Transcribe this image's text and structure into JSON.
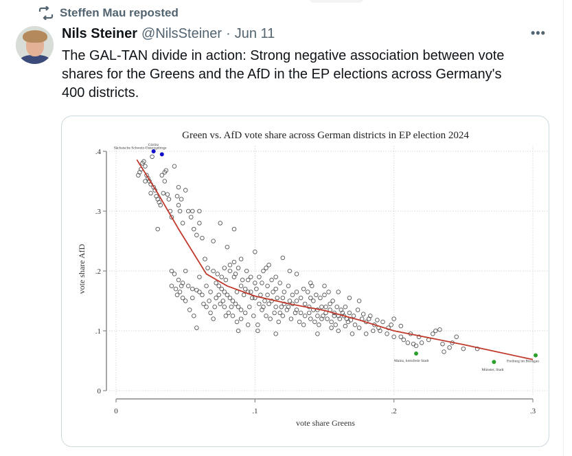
{
  "repost": {
    "label": "Steffen Mau reposted",
    "icon": "repost-icon"
  },
  "author": {
    "display_name": "Nils Steiner",
    "handle": "@NilsSteiner",
    "separator": "·",
    "date": "Jun 11",
    "avatar": "avatar-photo"
  },
  "more_icon": "•••",
  "tweet": {
    "lines": [
      "The GAL-TAN divide in action: Strong negative association between vote",
      "shares for the Greens and the AfD in the EP elections across Germany's",
      "400 districts."
    ]
  },
  "chart_data": {
    "type": "scatter",
    "title": "Green vs. AfD vote share across German districts in EP election 2024",
    "xlabel": "vote share Greens",
    "ylabel": "vote share AfD",
    "xlim": [
      0,
      0.3
    ],
    "ylim": [
      0,
      0.4
    ],
    "xticks": [
      {
        "v": 0,
        "label": "0"
      },
      {
        "v": 0.1,
        "label": ".1"
      },
      {
        "v": 0.2,
        "label": ".2"
      },
      {
        "v": 0.3,
        "label": ".3"
      }
    ],
    "yticks": [
      {
        "v": 0,
        "label": "0"
      },
      {
        "v": 0.1,
        "label": ".1"
      },
      {
        "v": 0.2,
        "label": ".2"
      },
      {
        "v": 0.3,
        "label": ".3"
      },
      {
        "v": 0.4,
        "label": ".4"
      }
    ],
    "grid": true,
    "colors": {
      "points": "#555555",
      "fit_line": "#c0392b",
      "highlight_afd": "#1010c8",
      "highlight_green": "#2ca02c"
    },
    "fit_line": {
      "name": "smoothed fit",
      "x": [
        0.015,
        0.03,
        0.045,
        0.065,
        0.08,
        0.1,
        0.125,
        0.15,
        0.175,
        0.2,
        0.25,
        0.3
      ],
      "y": [
        0.386,
        0.33,
        0.27,
        0.195,
        0.175,
        0.158,
        0.145,
        0.134,
        0.118,
        0.1,
        0.077,
        0.052
      ]
    },
    "highlighted": [
      {
        "label": "Görlitz",
        "x": 0.027,
        "y": 0.4,
        "group": "afd"
      },
      {
        "label": "Sächsische Schweiz-Osterzgebirge",
        "x": 0.033,
        "y": 0.395,
        "group": "afd"
      },
      {
        "label": "Mainz, kreisfreie Stadt",
        "x": 0.216,
        "y": 0.062,
        "group": "green"
      },
      {
        "label": "Münster, Stadt",
        "x": 0.272,
        "y": 0.048,
        "group": "green"
      },
      {
        "label": "Freiburg im Breisgau",
        "x": 0.302,
        "y": 0.059,
        "group": "green"
      }
    ],
    "points": [
      [
        0.016,
        0.36
      ],
      [
        0.017,
        0.365
      ],
      [
        0.018,
        0.37
      ],
      [
        0.019,
        0.38
      ],
      [
        0.02,
        0.383
      ],
      [
        0.021,
        0.375
      ],
      [
        0.022,
        0.36
      ],
      [
        0.023,
        0.355
      ],
      [
        0.024,
        0.35
      ],
      [
        0.025,
        0.345
      ],
      [
        0.026,
        0.391
      ],
      [
        0.027,
        0.34
      ],
      [
        0.028,
        0.335
      ],
      [
        0.029,
        0.325
      ],
      [
        0.03,
        0.32
      ],
      [
        0.031,
        0.315
      ],
      [
        0.032,
        0.31
      ],
      [
        0.033,
        0.36
      ],
      [
        0.034,
        0.33
      ],
      [
        0.035,
        0.365
      ],
      [
        0.036,
        0.368
      ],
      [
        0.037,
        0.328
      ],
      [
        0.038,
        0.32
      ],
      [
        0.039,
        0.3
      ],
      [
        0.04,
        0.29
      ],
      [
        0.042,
        0.375
      ],
      [
        0.044,
        0.325
      ],
      [
        0.045,
        0.31
      ],
      [
        0.046,
        0.3
      ],
      [
        0.047,
        0.32
      ],
      [
        0.048,
        0.28
      ],
      [
        0.05,
        0.335
      ],
      [
        0.052,
        0.3
      ],
      [
        0.054,
        0.29
      ],
      [
        0.056,
        0.27
      ],
      [
        0.058,
        0.26
      ],
      [
        0.06,
        0.28
      ],
      [
        0.062,
        0.255
      ],
      [
        0.064,
        0.22
      ],
      [
        0.066,
        0.205
      ],
      [
        0.03,
        0.27
      ],
      [
        0.035,
        0.35
      ],
      [
        0.025,
        0.33
      ],
      [
        0.045,
        0.34
      ],
      [
        0.055,
        0.3
      ],
      [
        0.06,
        0.3
      ],
      [
        0.07,
        0.25
      ],
      [
        0.075,
        0.28
      ],
      [
        0.08,
        0.24
      ],
      [
        0.085,
        0.27
      ],
      [
        0.04,
        0.2
      ],
      [
        0.042,
        0.195
      ],
      [
        0.045,
        0.185
      ],
      [
        0.048,
        0.18
      ],
      [
        0.05,
        0.2
      ],
      [
        0.052,
        0.175
      ],
      [
        0.055,
        0.17
      ],
      [
        0.058,
        0.168
      ],
      [
        0.06,
        0.165
      ],
      [
        0.062,
        0.16
      ],
      [
        0.044,
        0.16
      ],
      [
        0.046,
        0.165
      ],
      [
        0.048,
        0.155
      ],
      [
        0.05,
        0.15
      ],
      [
        0.053,
        0.135
      ],
      [
        0.056,
        0.125
      ],
      [
        0.058,
        0.105
      ],
      [
        0.065,
        0.14
      ],
      [
        0.068,
        0.13
      ],
      [
        0.07,
        0.12
      ],
      [
        0.072,
        0.18
      ],
      [
        0.074,
        0.175
      ],
      [
        0.076,
        0.17
      ],
      [
        0.078,
        0.165
      ],
      [
        0.08,
        0.16
      ],
      [
        0.082,
        0.155
      ],
      [
        0.084,
        0.15
      ],
      [
        0.086,
        0.145
      ],
      [
        0.088,
        0.14
      ],
      [
        0.09,
        0.135
      ],
      [
        0.07,
        0.2
      ],
      [
        0.073,
        0.195
      ],
      [
        0.076,
        0.19
      ],
      [
        0.079,
        0.185
      ],
      [
        0.082,
        0.2
      ],
      [
        0.085,
        0.19
      ],
      [
        0.088,
        0.205
      ],
      [
        0.091,
        0.185
      ],
      [
        0.094,
        0.2
      ],
      [
        0.097,
        0.19
      ],
      [
        0.075,
        0.145
      ],
      [
        0.078,
        0.14
      ],
      [
        0.081,
        0.13
      ],
      [
        0.084,
        0.125
      ],
      [
        0.087,
        0.115
      ],
      [
        0.09,
        0.12
      ],
      [
        0.093,
        0.13
      ],
      [
        0.096,
        0.14
      ],
      [
        0.099,
        0.125
      ],
      [
        0.102,
        0.11
      ],
      [
        0.092,
        0.16
      ],
      [
        0.095,
        0.165
      ],
      [
        0.098,
        0.155
      ],
      [
        0.101,
        0.17
      ],
      [
        0.104,
        0.16
      ],
      [
        0.107,
        0.15
      ],
      [
        0.11,
        0.145
      ],
      [
        0.113,
        0.165
      ],
      [
        0.116,
        0.155
      ],
      [
        0.119,
        0.14
      ],
      [
        0.1,
        0.18
      ],
      [
        0.103,
        0.19
      ],
      [
        0.106,
        0.2
      ],
      [
        0.109,
        0.175
      ],
      [
        0.112,
        0.185
      ],
      [
        0.115,
        0.17
      ],
      [
        0.118,
        0.18
      ],
      [
        0.121,
        0.165
      ],
      [
        0.124,
        0.175
      ],
      [
        0.127,
        0.16
      ],
      [
        0.105,
        0.135
      ],
      [
        0.108,
        0.125
      ],
      [
        0.111,
        0.12
      ],
      [
        0.114,
        0.13
      ],
      [
        0.117,
        0.115
      ],
      [
        0.12,
        0.125
      ],
      [
        0.123,
        0.135
      ],
      [
        0.126,
        0.12
      ],
      [
        0.129,
        0.13
      ],
      [
        0.132,
        0.115
      ],
      [
        0.13,
        0.15
      ],
      [
        0.133,
        0.155
      ],
      [
        0.136,
        0.145
      ],
      [
        0.139,
        0.14
      ],
      [
        0.142,
        0.15
      ],
      [
        0.145,
        0.135
      ],
      [
        0.148,
        0.14
      ],
      [
        0.151,
        0.13
      ],
      [
        0.154,
        0.145
      ],
      [
        0.157,
        0.125
      ],
      [
        0.135,
        0.17
      ],
      [
        0.138,
        0.165
      ],
      [
        0.141,
        0.175
      ],
      [
        0.144,
        0.16
      ],
      [
        0.147,
        0.155
      ],
      [
        0.15,
        0.16
      ],
      [
        0.153,
        0.165
      ],
      [
        0.156,
        0.15
      ],
      [
        0.159,
        0.14
      ],
      [
        0.162,
        0.135
      ],
      [
        0.14,
        0.12
      ],
      [
        0.143,
        0.115
      ],
      [
        0.146,
        0.11
      ],
      [
        0.149,
        0.125
      ],
      [
        0.152,
        0.12
      ],
      [
        0.155,
        0.115
      ],
      [
        0.158,
        0.11
      ],
      [
        0.161,
        0.12
      ],
      [
        0.164,
        0.125
      ],
      [
        0.167,
        0.115
      ],
      [
        0.165,
        0.14
      ],
      [
        0.168,
        0.13
      ],
      [
        0.171,
        0.125
      ],
      [
        0.174,
        0.135
      ],
      [
        0.177,
        0.12
      ],
      [
        0.18,
        0.115
      ],
      [
        0.183,
        0.125
      ],
      [
        0.186,
        0.11
      ],
      [
        0.189,
        0.105
      ],
      [
        0.192,
        0.115
      ],
      [
        0.16,
        0.1
      ],
      [
        0.17,
        0.095
      ],
      [
        0.175,
        0.105
      ],
      [
        0.185,
        0.1
      ],
      [
        0.195,
        0.095
      ],
      [
        0.198,
        0.11
      ],
      [
        0.2,
        0.12
      ],
      [
        0.168,
        0.155
      ],
      [
        0.175,
        0.15
      ],
      [
        0.12,
        0.222
      ],
      [
        0.205,
        0.09
      ],
      [
        0.207,
        0.085
      ],
      [
        0.21,
        0.08
      ],
      [
        0.212,
        0.095
      ],
      [
        0.214,
        0.078
      ],
      [
        0.216,
        0.075
      ],
      [
        0.218,
        0.09
      ],
      [
        0.225,
        0.085
      ],
      [
        0.228,
        0.095
      ],
      [
        0.23,
        0.1
      ],
      [
        0.233,
        0.102
      ],
      [
        0.236,
        0.065
      ],
      [
        0.24,
        0.072
      ],
      [
        0.242,
        0.08
      ],
      [
        0.245,
        0.09
      ],
      [
        0.25,
        0.07
      ],
      [
        0.095,
        0.11
      ],
      [
        0.115,
        0.095
      ],
      [
        0.102,
        0.1
      ],
      [
        0.088,
        0.1
      ],
      [
        0.06,
        0.19
      ],
      [
        0.065,
        0.175
      ],
      [
        0.068,
        0.165
      ],
      [
        0.072,
        0.155
      ],
      [
        0.074,
        0.16
      ],
      [
        0.077,
        0.15
      ],
      [
        0.083,
        0.14
      ],
      [
        0.087,
        0.165
      ],
      [
        0.09,
        0.175
      ],
      [
        0.093,
        0.17
      ],
      [
        0.097,
        0.165
      ],
      [
        0.1,
        0.155
      ],
      [
        0.103,
        0.145
      ],
      [
        0.106,
        0.14
      ],
      [
        0.109,
        0.16
      ],
      [
        0.112,
        0.15
      ],
      [
        0.115,
        0.14
      ],
      [
        0.118,
        0.13
      ],
      [
        0.121,
        0.145
      ],
      [
        0.124,
        0.14
      ],
      [
        0.127,
        0.145
      ],
      [
        0.13,
        0.135
      ],
      [
        0.133,
        0.13
      ],
      [
        0.136,
        0.125
      ],
      [
        0.139,
        0.13
      ],
      [
        0.142,
        0.135
      ],
      [
        0.145,
        0.125
      ],
      [
        0.148,
        0.12
      ],
      [
        0.151,
        0.14
      ],
      [
        0.154,
        0.135
      ],
      [
        0.157,
        0.13
      ],
      [
        0.16,
        0.125
      ],
      [
        0.163,
        0.13
      ],
      [
        0.166,
        0.12
      ],
      [
        0.169,
        0.118
      ],
      [
        0.172,
        0.11
      ],
      [
        0.178,
        0.128
      ],
      [
        0.182,
        0.12
      ],
      [
        0.188,
        0.118
      ],
      [
        0.196,
        0.105
      ],
      [
        0.04,
        0.175
      ],
      [
        0.043,
        0.17
      ],
      [
        0.047,
        0.175
      ],
      [
        0.055,
        0.155
      ],
      [
        0.063,
        0.145
      ],
      [
        0.067,
        0.15
      ],
      [
        0.071,
        0.14
      ],
      [
        0.079,
        0.125
      ],
      [
        0.11,
        0.21
      ],
      [
        0.13,
        0.195
      ],
      [
        0.14,
        0.18
      ],
      [
        0.15,
        0.175
      ],
      [
        0.16,
        0.165
      ],
      [
        0.125,
        0.2
      ],
      [
        0.085,
        0.215
      ],
      [
        0.09,
        0.22
      ],
      [
        0.1,
        0.232
      ],
      [
        0.108,
        0.205
      ],
      [
        0.135,
        0.11
      ],
      [
        0.145,
        0.095
      ],
      [
        0.078,
        0.205
      ],
      [
        0.082,
        0.21
      ],
      [
        0.086,
        0.195
      ],
      [
        0.095,
        0.185
      ],
      [
        0.105,
        0.18
      ],
      [
        0.115,
        0.19
      ],
      [
        0.12,
        0.155
      ],
      [
        0.125,
        0.15
      ],
      [
        0.13,
        0.165
      ],
      [
        0.14,
        0.155
      ],
      [
        0.155,
        0.105
      ],
      [
        0.165,
        0.108
      ],
      [
        0.18,
        0.095
      ],
      [
        0.19,
        0.1
      ],
      [
        0.205,
        0.108
      ],
      [
        0.2,
        0.09
      ],
      [
        0.22,
        0.08
      ],
      [
        0.235,
        0.078
      ],
      [
        0.26,
        0.07
      ],
      [
        0.021,
        0.35
      ]
    ]
  }
}
